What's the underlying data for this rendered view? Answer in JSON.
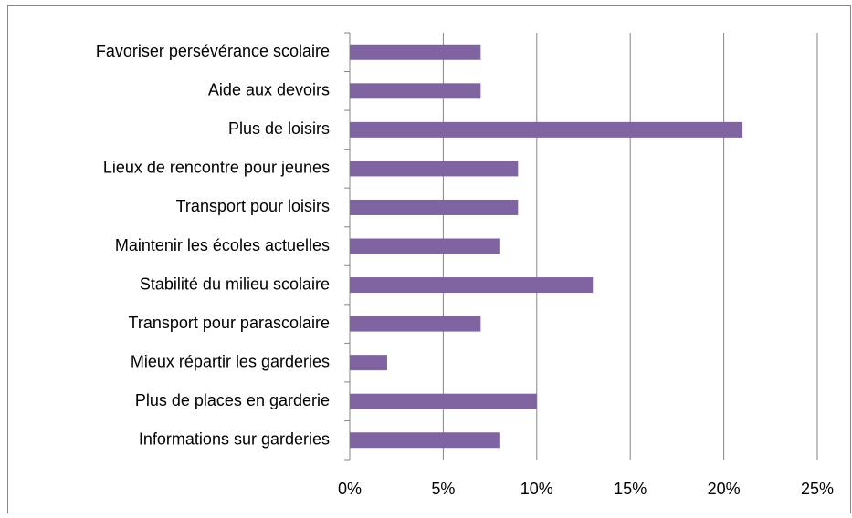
{
  "chart_data": {
    "type": "bar",
    "orientation": "horizontal",
    "categories": [
      "Favoriser persévérance scolaire",
      "Aide aux devoirs",
      "Plus de loisirs",
      "Lieux de rencontre pour jeunes",
      "Transport pour loisirs",
      "Maintenir les écoles actuelles",
      "Stabilité du milieu scolaire",
      "Transport pour parascolaire",
      "Mieux répartir les garderies",
      "Plus de places en garderie",
      "Informations sur garderies"
    ],
    "values": [
      7,
      7,
      21,
      9,
      9,
      8,
      13,
      7,
      2,
      10,
      8
    ],
    "color": "#8064a2",
    "xlim": [
      0,
      25
    ],
    "xticks": [
      {
        "value": 0,
        "label": "0%"
      },
      {
        "value": 5,
        "label": "5%"
      },
      {
        "value": 10,
        "label": "10%"
      },
      {
        "value": 15,
        "label": "15%"
      },
      {
        "value": 20,
        "label": "20%"
      },
      {
        "value": 25,
        "label": "25%"
      }
    ],
    "grid": true
  }
}
